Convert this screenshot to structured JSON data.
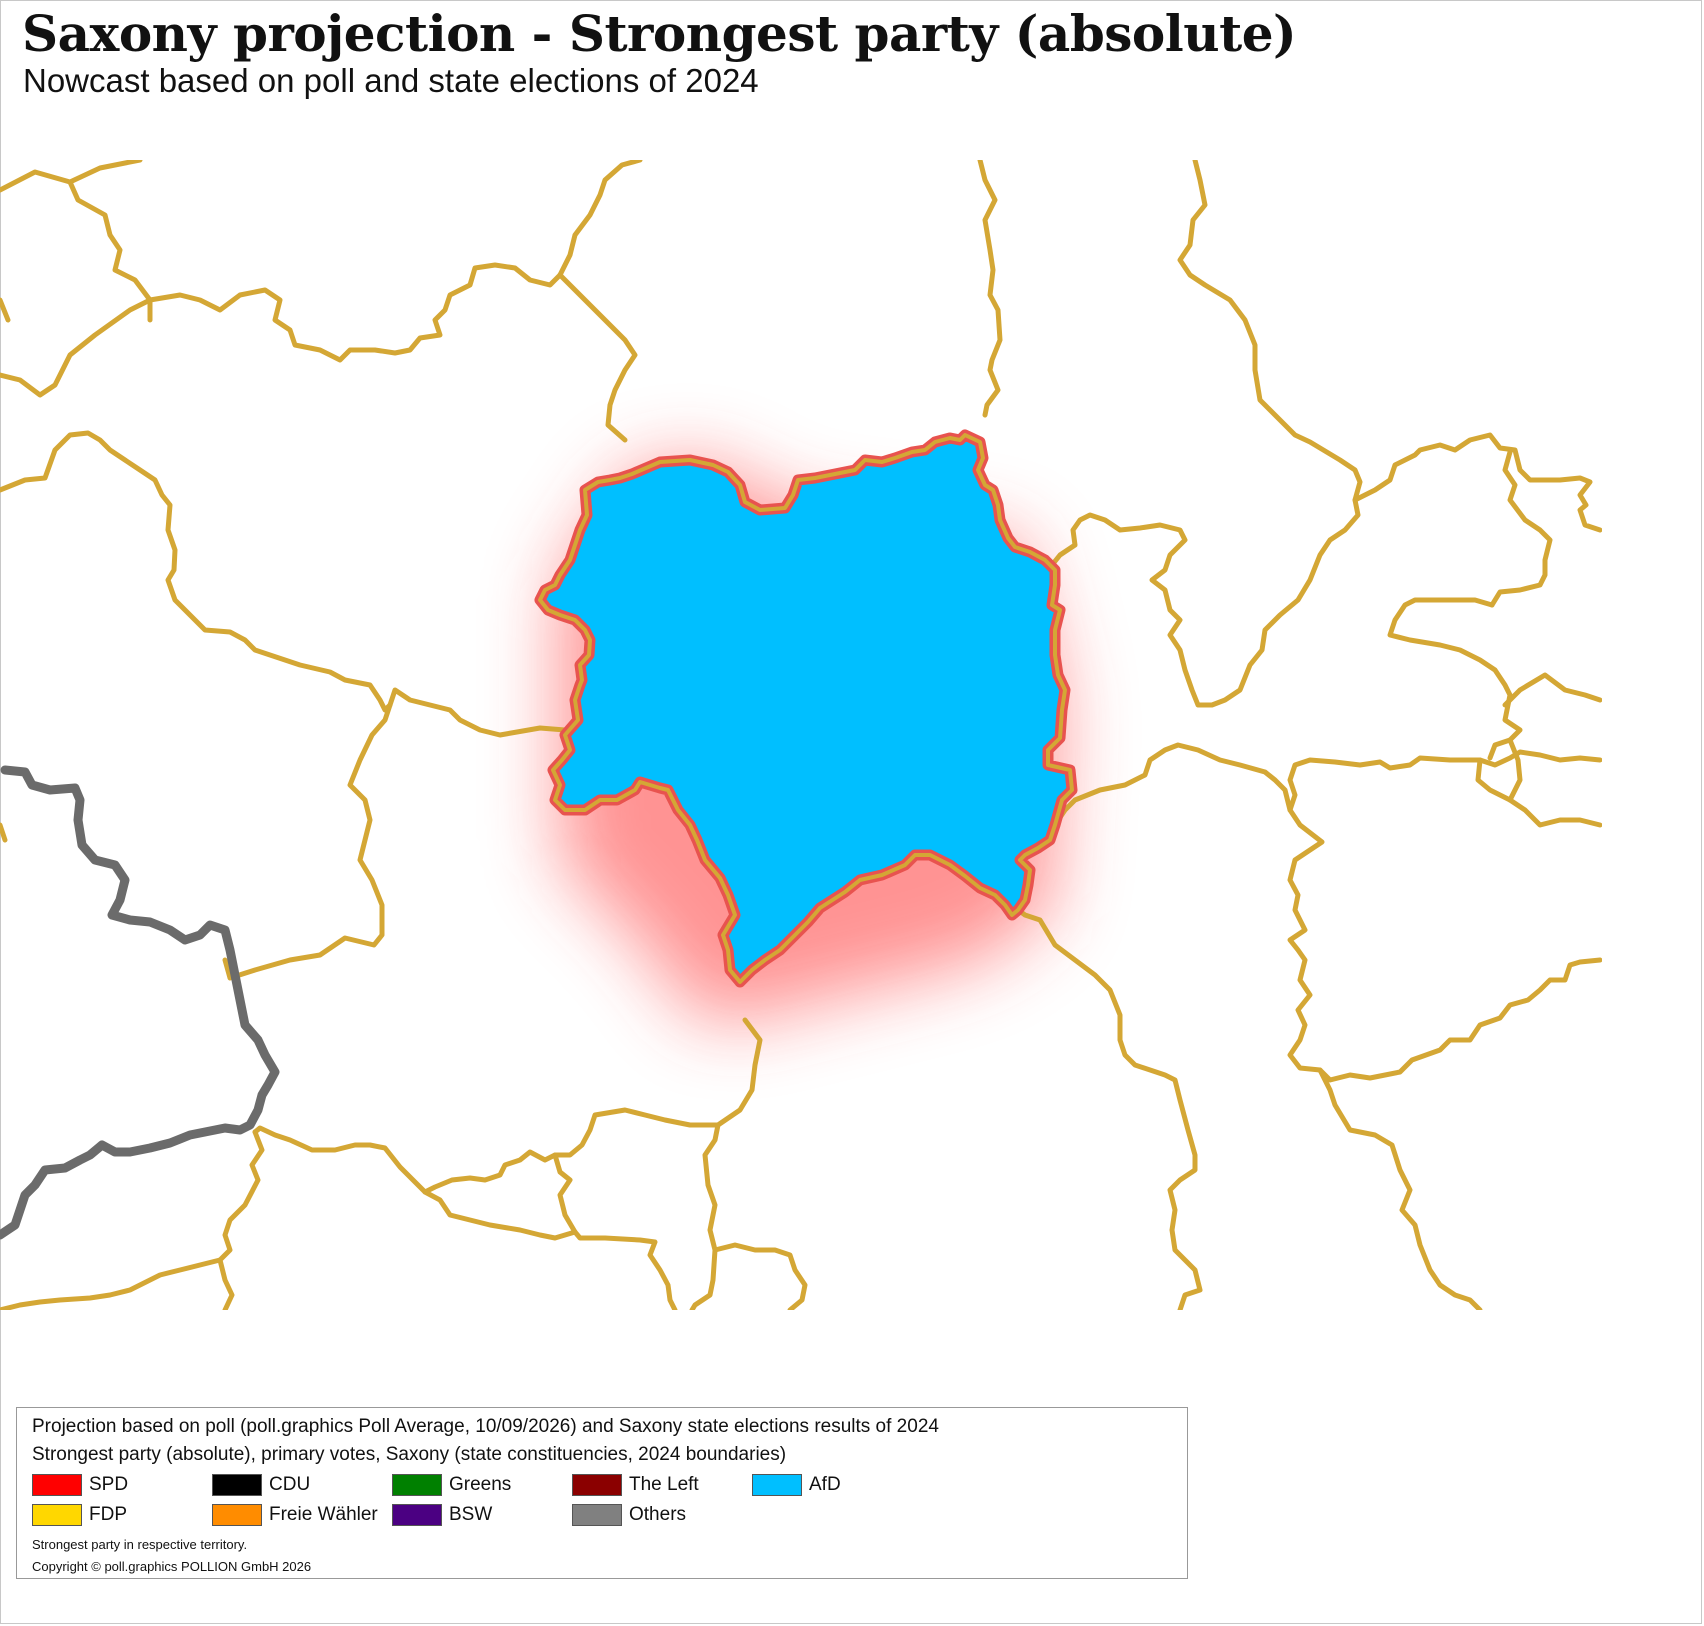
{
  "title": "Saxony projection - Strongest party (absolute)",
  "subtitle": "Nowcast based on poll and state elections of 2024",
  "map": {
    "highlighted_constituency_party": "AfD",
    "highlight_fill": "#00bfff",
    "highlight_outline": "#e8534f",
    "boundary_color": "#d4a735",
    "state_border_color": "#6b6b6b"
  },
  "legend": {
    "line1": "Projection based on poll (poll.graphics Poll Average, 10/09/2026) and Saxony state elections results of 2024",
    "line2": "Strongest party (absolute), primary votes, Saxony (state constituencies, 2024 boundaries)",
    "items": [
      {
        "label": "SPD",
        "color": "#ff0000"
      },
      {
        "label": "CDU",
        "color": "#000000"
      },
      {
        "label": "Greens",
        "color": "#008000"
      },
      {
        "label": "The Left",
        "color": "#8b0000"
      },
      {
        "label": "AfD",
        "color": "#00bfff"
      },
      {
        "label": "FDP",
        "color": "#ffd700"
      },
      {
        "label": "Freie Wähler",
        "color": "#ff8c00"
      },
      {
        "label": "BSW",
        "color": "#4b0082"
      },
      {
        "label": "Others",
        "color": "#808080"
      }
    ],
    "note": "Strongest party in respective territory.",
    "copyright": "Copyright © poll.graphics POLLION GmbH 2026"
  }
}
